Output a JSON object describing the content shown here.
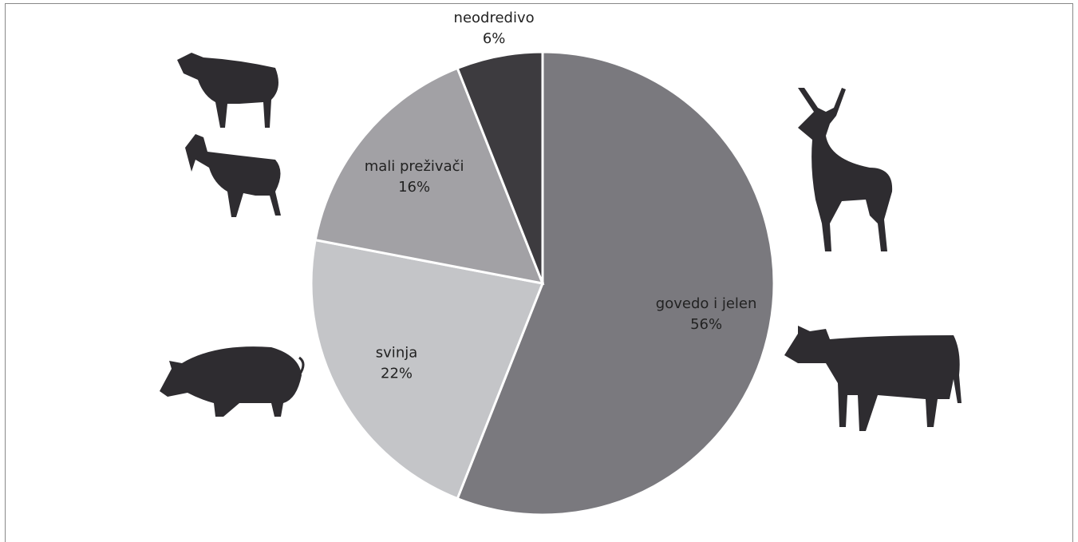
{
  "chart_data": {
    "type": "pie",
    "categories": [
      "govedo i jelen",
      "svinja",
      "mali preživači",
      "neodredivo"
    ],
    "values": [
      56,
      22,
      16,
      6
    ],
    "value_labels": [
      "56%",
      "22%",
      "16%",
      "6%"
    ],
    "colors": [
      "#7a797e",
      "#c4c5c8",
      "#a2a1a5",
      "#3d3b3f"
    ]
  }
}
